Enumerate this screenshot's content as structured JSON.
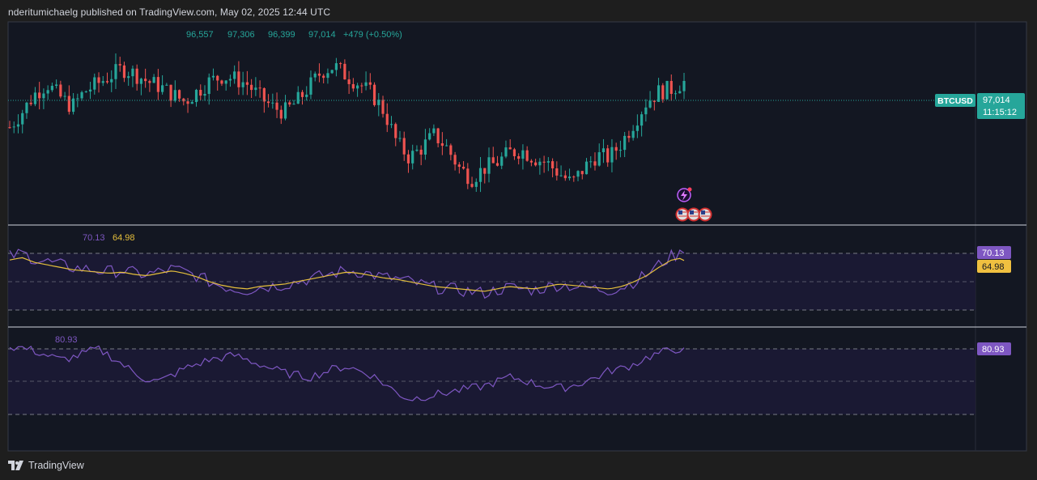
{
  "header": {
    "published_text": "nderitumichaelg published on TradingView.com, May 02, 2025 12:44 UTC"
  },
  "footer": {
    "brand": "TradingView"
  },
  "colors": {
    "background": "#131722",
    "frame": "#1e1e1e",
    "up": "#26a69a",
    "down": "#ef5350",
    "rsi": "#7e57c2",
    "rsi_ma": "#e5bf3c",
    "band": "#1c1a36",
    "price_tag": "#26a69a"
  },
  "ohlc": {
    "open": "96,557",
    "high": "97,306",
    "low": "96,399",
    "close": "97,014",
    "change": "+479 (+0.50%)"
  },
  "price_labels": {
    "symbol": "BTCUSD",
    "last": "97,014",
    "countdown": "11:15:12"
  },
  "rsi_pane": {
    "rsi_value": "70.13",
    "ma_value": "64.98"
  },
  "osc_pane": {
    "value": "80.93"
  },
  "events": {
    "icons": [
      "lightning-event-icon",
      "us-flag-icon",
      "us-flag-icon",
      "us-flag-icon"
    ]
  },
  "chart_data": [
    {
      "type": "candlestick",
      "series_name": "BTCUSD",
      "last_value": 97014,
      "close_path_approx": [
        95.2,
        95.8,
        96.5,
        96.9,
        96.4,
        96.0,
        96.6,
        96.9,
        97.2,
        97.5,
        97.3,
        97.0,
        96.8,
        96.5,
        96.2,
        96.6,
        97.0,
        97.2,
        97.1,
        96.9,
        96.4,
        96.0,
        95.8,
        96.2,
        96.8,
        97.4,
        97.6,
        97.2,
        96.9,
        96.5,
        95.8,
        94.6,
        94.0,
        94.4,
        94.9,
        94.4,
        93.6,
        93.2,
        93.6,
        93.8,
        94.2,
        94.3,
        94.0,
        93.8,
        93.4,
        93.0,
        93.6,
        94.1,
        94.0,
        94.6,
        95.4,
        96.2,
        96.6,
        96.7,
        97.0
      ]
    },
    {
      "type": "line",
      "series_name": "RSI",
      "last_value": 70.13,
      "ma_last_value": 64.98,
      "values_approx": [
        68,
        70,
        66,
        64,
        62,
        60,
        59,
        58,
        57,
        58,
        56,
        55,
        57,
        59,
        57,
        54,
        50,
        47,
        45,
        44,
        46,
        47,
        48,
        50,
        52,
        54,
        56,
        58,
        57,
        55,
        53,
        52,
        50,
        48,
        46,
        45,
        44,
        43,
        42,
        44,
        46,
        45,
        44,
        46,
        48,
        47,
        46,
        45,
        44,
        46,
        50,
        55,
        62,
        68,
        70
      ]
    },
    {
      "type": "line",
      "series_name": "Oscillator",
      "last_value": 80.93,
      "values_approx": [
        82,
        81,
        78,
        74,
        70,
        72,
        76,
        80,
        74,
        66,
        58,
        52,
        50,
        56,
        62,
        66,
        70,
        72,
        74,
        70,
        66,
        62,
        58,
        56,
        54,
        58,
        62,
        64,
        60,
        56,
        48,
        40,
        34,
        36,
        38,
        40,
        42,
        44,
        46,
        50,
        54,
        52,
        48,
        46,
        44,
        46,
        50,
        54,
        60,
        62,
        66,
        72,
        76,
        79,
        81
      ]
    }
  ]
}
